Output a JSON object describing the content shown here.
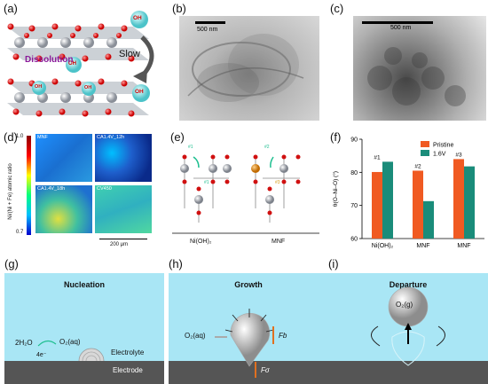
{
  "labels": {
    "a": "(a)",
    "b": "(b)",
    "c": "(c)",
    "d": "(d)",
    "e": "(e)",
    "f": "(f)",
    "g": "(g)",
    "h": "(h)",
    "i": "(i)"
  },
  "panel_a": {
    "ion": "OH",
    "dissolution": "Dissolution",
    "slow": "Slow"
  },
  "panel_b": {
    "scale": "500 nm"
  },
  "panel_c": {
    "scale": "500 nm"
  },
  "panel_d": {
    "maps": [
      "MNF",
      "CA1.4V_12h",
      "CA1.4V_18h",
      "CV450"
    ],
    "colorbar_label": "Ni/(Ni + Fe) atomic ratio",
    "cb_max": "1.0",
    "cb_min": "0.7",
    "scale": "200 μm"
  },
  "panel_e": {
    "left_label": "Ni(OH)₂",
    "right_label": "MNF",
    "sites": [
      "#1",
      "#1",
      "#2",
      "#3"
    ]
  },
  "panel_g": {
    "title": "Nucleation",
    "h2o": "2H₂O",
    "o2": "O₂(aq)",
    "electron": "4e⁻",
    "electrolyte": "Electrolyte",
    "electrode": "Electrode"
  },
  "panel_h": {
    "title": "Growth",
    "o2": "O₂(aq)",
    "fb": "Fb",
    "fsigma": "Fσ"
  },
  "panel_i": {
    "title": "Departure",
    "o2": "O₂(g)"
  },
  "chart_data": {
    "type": "bar",
    "categories": [
      "Ni(OH)₂",
      "MNF",
      "MNF"
    ],
    "annotations": [
      "#1",
      "#2",
      "#3"
    ],
    "series": [
      {
        "name": "Pristine",
        "values": [
          80.1,
          80.5,
          84.0
        ],
        "color": "#f05a22"
      },
      {
        "name": "1.6V",
        "values": [
          83.2,
          71.3,
          81.8
        ],
        "color": "#1a8c7a"
      }
    ],
    "ylabel": "θ(O–Ni–O) (°)",
    "ylim": [
      60,
      90
    ],
    "yticks": [
      60,
      70,
      80,
      90
    ],
    "legend": "top-right"
  }
}
